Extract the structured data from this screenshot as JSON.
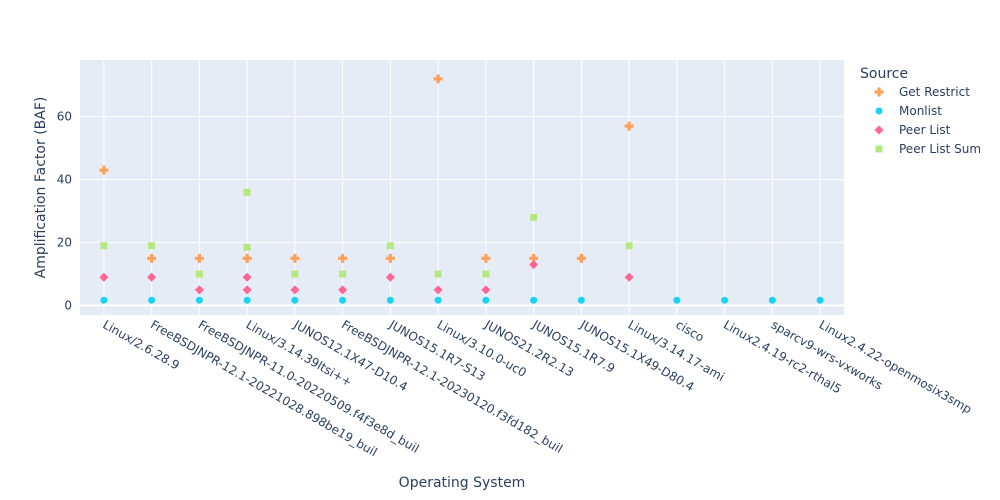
{
  "chart_data": {
    "type": "scatter",
    "xlabel": "Operating System",
    "ylabel": "Amplification Factor (BAF)",
    "ylim": [
      -3,
      78
    ],
    "yticks": [
      0,
      20,
      40,
      60
    ],
    "grid": true,
    "legend_title": "Source",
    "legend_position": "right",
    "categories": [
      "Linux/2.6.28.9",
      "FreeBSDJNPR-12.1-20221028.898be19_buil",
      "FreeBSDJNPR-11.0-20220509.f4f3e8d_buil",
      "Linux/3.14.39ltsi++",
      "JUNOS12.1X47-D10.4",
      "FreeBSDJNPR-12.1-20230120.f3fd182_buil",
      "JUNOS15.1R7-S13",
      "Linux/3.10.0-uc0",
      "JUNOS21.2R2.13",
      "JUNOS15.1R7.9",
      "JUNOS15.1X49-D80.4",
      "Linux/3.14.17-ami",
      "cisco",
      "Linux2.4.19-rc2-rthal5",
      "sparcv9-wrs-vxworks",
      "Linux2.4.22-openmosix3smp"
    ],
    "series": [
      {
        "name": "Get Restrict",
        "color": "#FFA15A",
        "marker": "cross",
        "points": [
          {
            "x": "Linux/2.6.28.9",
            "y": 43
          },
          {
            "x": "FreeBSDJNPR-12.1-20221028.898be19_buil",
            "y": 15
          },
          {
            "x": "FreeBSDJNPR-11.0-20220509.f4f3e8d_buil",
            "y": 15
          },
          {
            "x": "Linux/3.14.39ltsi++",
            "y": 15
          },
          {
            "x": "JUNOS12.1X47-D10.4",
            "y": 15
          },
          {
            "x": "FreeBSDJNPR-12.1-20230120.f3fd182_buil",
            "y": 15
          },
          {
            "x": "JUNOS15.1R7-S13",
            "y": 15
          },
          {
            "x": "Linux/3.10.0-uc0",
            "y": 72
          },
          {
            "x": "JUNOS21.2R2.13",
            "y": 15
          },
          {
            "x": "JUNOS15.1R7.9",
            "y": 15
          },
          {
            "x": "JUNOS15.1X49-D80.4",
            "y": 15
          },
          {
            "x": "Linux/3.14.17-ami",
            "y": 57
          }
        ]
      },
      {
        "name": "Monlist",
        "color": "#19D3F3",
        "marker": "circle",
        "points": [
          {
            "x": "Linux/2.6.28.9",
            "y": 1.7
          },
          {
            "x": "FreeBSDJNPR-12.1-20221028.898be19_buil",
            "y": 1.7
          },
          {
            "x": "FreeBSDJNPR-11.0-20220509.f4f3e8d_buil",
            "y": 1.7
          },
          {
            "x": "Linux/3.14.39ltsi++",
            "y": 1.7
          },
          {
            "x": "JUNOS12.1X47-D10.4",
            "y": 1.7
          },
          {
            "x": "FreeBSDJNPR-12.1-20230120.f3fd182_buil",
            "y": 1.7
          },
          {
            "x": "JUNOS15.1R7-S13",
            "y": 1.7
          },
          {
            "x": "Linux/3.10.0-uc0",
            "y": 1.7
          },
          {
            "x": "JUNOS21.2R2.13",
            "y": 1.7
          },
          {
            "x": "JUNOS15.1R7.9",
            "y": 1.7
          },
          {
            "x": "JUNOS15.1X49-D80.4",
            "y": 1.7
          },
          {
            "x": "cisco",
            "y": 1.7
          },
          {
            "x": "Linux2.4.19-rc2-rthal5",
            "y": 1.7
          },
          {
            "x": "sparcv9-wrs-vxworks",
            "y": 1.7
          },
          {
            "x": "Linux2.4.22-openmosix3smp",
            "y": 1.7
          }
        ]
      },
      {
        "name": "Peer List",
        "color": "#FF6692",
        "marker": "diamond",
        "points": [
          {
            "x": "Linux/2.6.28.9",
            "y": 9
          },
          {
            "x": "FreeBSDJNPR-12.1-20221028.898be19_buil",
            "y": 9
          },
          {
            "x": "FreeBSDJNPR-11.0-20220509.f4f3e8d_buil",
            "y": 5
          },
          {
            "x": "Linux/3.14.39ltsi++",
            "y": 9
          },
          {
            "x": "Linux/3.14.39ltsi++",
            "y": 5
          },
          {
            "x": "JUNOS12.1X47-D10.4",
            "y": 5
          },
          {
            "x": "FreeBSDJNPR-12.1-20230120.f3fd182_buil",
            "y": 5
          },
          {
            "x": "JUNOS15.1R7-S13",
            "y": 9
          },
          {
            "x": "Linux/3.10.0-uc0",
            "y": 5
          },
          {
            "x": "JUNOS21.2R2.13",
            "y": 5
          },
          {
            "x": "JUNOS15.1R7.9",
            "y": 13
          },
          {
            "x": "Linux/3.14.17-ami",
            "y": 9
          }
        ]
      },
      {
        "name": "Peer List Sum",
        "color": "#B6E880",
        "marker": "square",
        "points": [
          {
            "x": "Linux/2.6.28.9",
            "y": 19
          },
          {
            "x": "FreeBSDJNPR-12.1-20221028.898be19_buil",
            "y": 19
          },
          {
            "x": "FreeBSDJNPR-11.0-20220509.f4f3e8d_buil",
            "y": 10
          },
          {
            "x": "Linux/3.14.39ltsi++",
            "y": 36
          },
          {
            "x": "Linux/3.14.39ltsi++",
            "y": 18.5
          },
          {
            "x": "JUNOS12.1X47-D10.4",
            "y": 10
          },
          {
            "x": "FreeBSDJNPR-12.1-20230120.f3fd182_buil",
            "y": 10
          },
          {
            "x": "JUNOS15.1R7-S13",
            "y": 19
          },
          {
            "x": "Linux/3.10.0-uc0",
            "y": 10
          },
          {
            "x": "JUNOS21.2R2.13",
            "y": 10
          },
          {
            "x": "JUNOS15.1R7.9",
            "y": 28
          },
          {
            "x": "Linux/3.14.17-ami",
            "y": 19
          }
        ]
      }
    ]
  }
}
